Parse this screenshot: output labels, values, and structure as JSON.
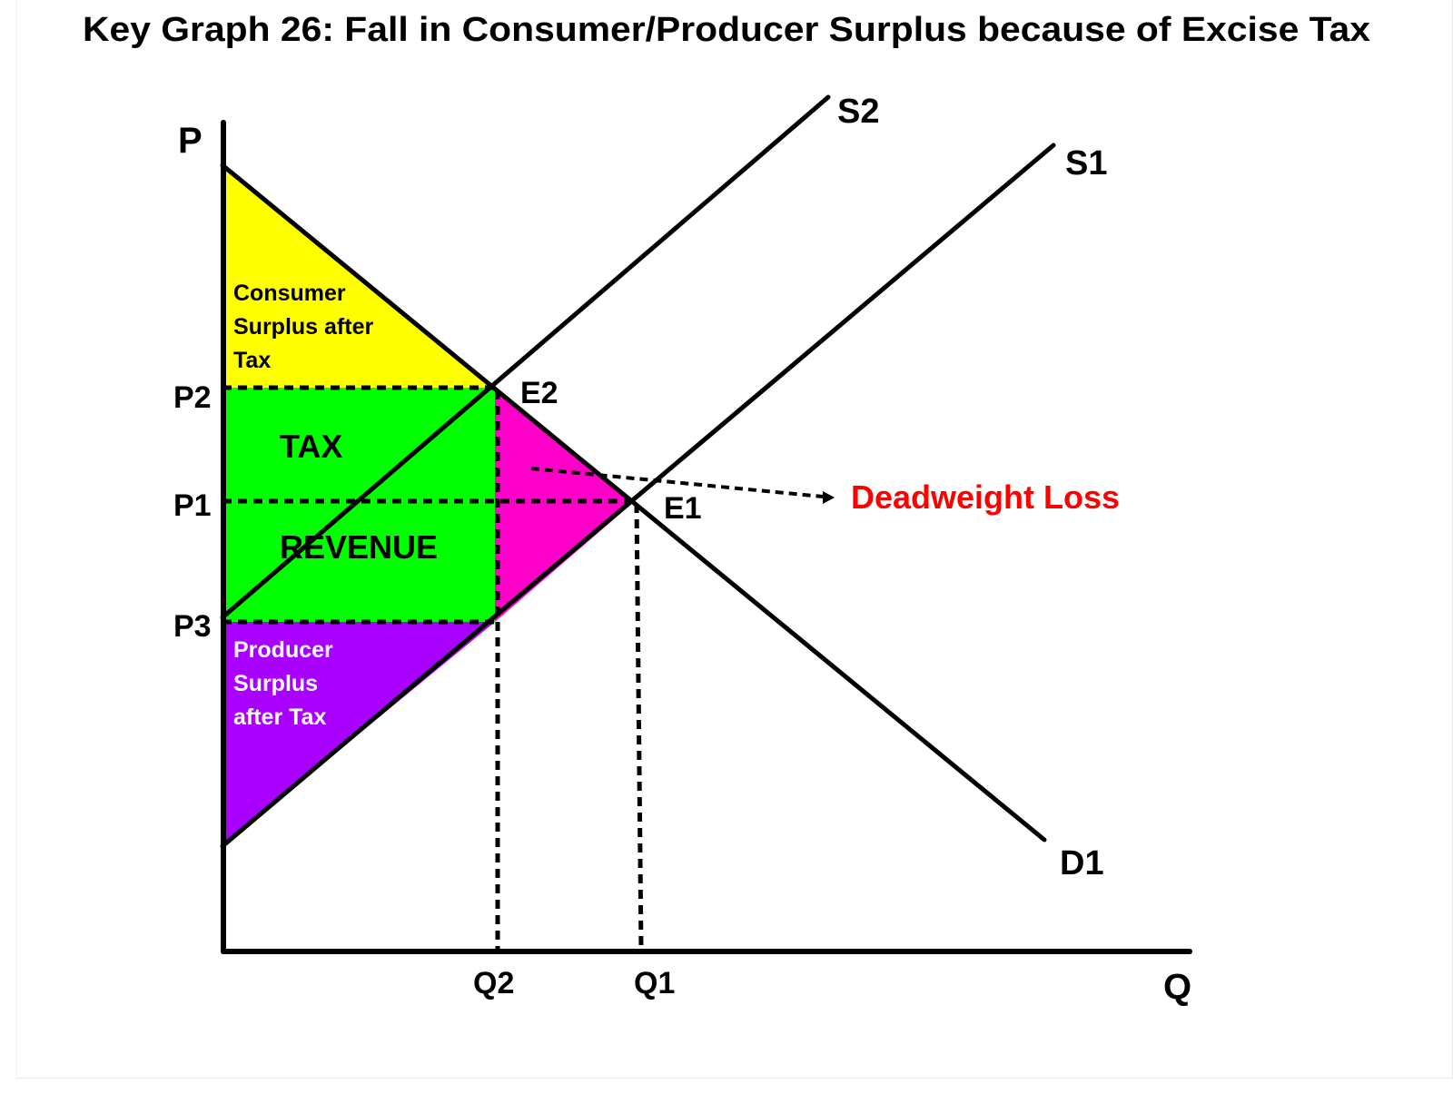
{
  "title": "Key Graph 26: Fall in Consumer/Producer Surplus because of Excise Tax",
  "axes": {
    "y_label": "P",
    "x_label": "Q"
  },
  "price_labels": {
    "p1": "P1",
    "p2": "P2",
    "p3": "P3"
  },
  "quantity_labels": {
    "q1": "Q1",
    "q2": "Q2"
  },
  "curves": {
    "supply_original": "S1",
    "supply_taxed": "S2",
    "demand": "D1"
  },
  "points": {
    "e1": "E1",
    "e2": "E2"
  },
  "regions": {
    "consumer_surplus_line1": "Consumer",
    "consumer_surplus_line2": "Surplus after",
    "consumer_surplus_line3": "Tax",
    "tax_revenue_line1": "TAX",
    "tax_revenue_line2": "REVENUE",
    "producer_surplus_line1": "Producer",
    "producer_surplus_line2": "Surplus",
    "producer_surplus_line3": "after Tax",
    "deadweight_loss": "Deadweight Loss"
  },
  "colors": {
    "consumer_surplus": "#ffff00",
    "tax_revenue": "#00ff00",
    "deadweight_loss": "#ff00c8",
    "producer_surplus": "#aa00ff",
    "deadweight_label": "#ff0000",
    "producer_label": "#ffffff"
  }
}
